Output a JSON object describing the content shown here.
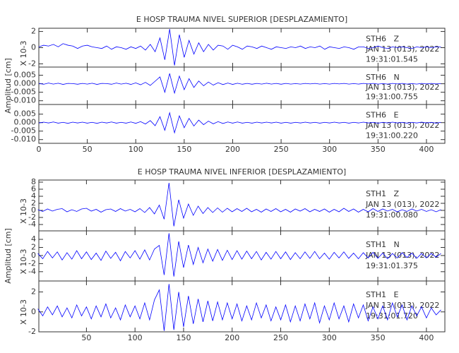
{
  "chart_data": [
    {
      "type": "line",
      "title": "E HOSP TRAUMA NIVEL SUPERIOR [DESPLAZAMIENTO]",
      "ylabel": "Amplitud [cm]",
      "color": "#0000ff",
      "xlim": [
        0,
        419
      ],
      "xticks": [
        0,
        50,
        100,
        150,
        200,
        250,
        300,
        350,
        400
      ],
      "x": [
        0,
        5,
        10,
        15,
        20,
        25,
        30,
        35,
        40,
        45,
        50,
        55,
        60,
        65,
        70,
        75,
        80,
        85,
        90,
        95,
        100,
        105,
        110,
        115,
        120,
        125,
        130,
        135,
        140,
        145,
        150,
        155,
        160,
        165,
        170,
        175,
        180,
        185,
        190,
        195,
        200,
        205,
        210,
        215,
        220,
        225,
        230,
        235,
        240,
        245,
        250,
        255,
        260,
        265,
        270,
        275,
        280,
        285,
        290,
        295,
        300,
        305,
        310,
        315,
        320,
        325,
        330,
        335,
        340,
        345,
        350,
        355,
        360,
        365,
        370,
        375,
        380,
        385,
        390,
        395,
        400,
        405,
        410,
        415
      ],
      "panels": [
        {
          "scale_label": "X 10-3",
          "ylim": [
            -2.4,
            2.4
          ],
          "yticks": [
            -2,
            0,
            2
          ],
          "labels": [
            "STH6   Z",
            "JAN 13 (013), 2022",
            "19:31:01.545"
          ],
          "values": [
            0.1,
            0.3,
            0.2,
            0.4,
            0.1,
            0.5,
            0.3,
            0.2,
            -0.1,
            0.2,
            0.3,
            0.1,
            0.0,
            -0.1,
            0.2,
            -0.2,
            0.1,
            0.0,
            -0.2,
            0.1,
            -0.1,
            0.2,
            -0.3,
            0.4,
            -0.5,
            1.2,
            -1.5,
            2.3,
            -2.2,
            1.6,
            -1.2,
            0.9,
            -0.8,
            0.6,
            -0.5,
            0.4,
            -0.3,
            0.3,
            0.2,
            -0.2,
            0.3,
            0.1,
            -0.2,
            0.2,
            0.1,
            -0.1,
            0.2,
            0.0,
            -0.2,
            0.1,
            0.0,
            -0.1,
            0.1,
            0.0,
            0.2,
            -0.1,
            0.1,
            0.0,
            0.2,
            -0.2,
            0.1,
            0.0,
            -0.1,
            0.1,
            0.0,
            -0.2,
            0.1,
            0.1,
            -0.1,
            0.0,
            0.2,
            0.0,
            -0.1,
            0.1,
            0.0,
            0.1,
            0.0,
            -0.1,
            0.1,
            0.0,
            0.1,
            0.0,
            0.1,
            0.1
          ]
        },
        {
          "ylim": [
            -0.0122,
            0.0098
          ],
          "yticks": [
            {
              "value": -0.01,
              "label": "-0.010"
            },
            -0.005,
            {
              "value": 0,
              "label": "0.000"
            },
            0.005
          ],
          "labels": [
            "STH6   N",
            "JAN 13 (013), 2022",
            "19:31:00.755"
          ],
          "values": [
            0.0002,
            -0.0003,
            0.0004,
            -0.0002,
            0.0003,
            -0.0004,
            0.0002,
            0.0001,
            -0.0003,
            0.0002,
            -0.0002,
            0.0003,
            -0.0004,
            0.0002,
            0.0001,
            -0.0003,
            0.0004,
            -0.0002,
            0.0003,
            -0.0004,
            0.0005,
            -0.0006,
            0.0008,
            -0.001,
            0.0015,
            0.004,
            -0.005,
            0.006,
            -0.0055,
            0.0045,
            -0.0035,
            0.003,
            -0.0022,
            0.0016,
            -0.0012,
            0.001,
            -0.0008,
            0.0006,
            -0.0005,
            0.0004,
            -0.0004,
            0.0003,
            -0.0003,
            0.0002,
            -0.0003,
            0.0002,
            -0.0002,
            0.0003,
            -0.0002,
            0.0002,
            -0.0003,
            0.0002,
            -0.0002,
            0.0001,
            -0.0002,
            0.0002,
            -0.0001,
            0.0002,
            -0.0002,
            0.0001,
            -0.0002,
            0.0002,
            -0.0001,
            0.0002,
            -0.0002,
            0.0001,
            -0.0002,
            0.0002,
            -0.0001,
            0.0002,
            -0.0002,
            0.0001,
            -0.0002,
            0.0002,
            -0.0001,
            0.0002,
            -0.0002,
            0.0001,
            -0.0002,
            0.0002,
            -0.0001,
            0.0002,
            -0.0001,
            0.0001
          ]
        },
        {
          "ylim": [
            -0.0122,
            0.0107
          ],
          "yticks": [
            {
              "value": -0.01,
              "label": "-0.010"
            },
            -0.005,
            {
              "value": 0,
              "label": "0.000"
            },
            0.005
          ],
          "labels": [
            "STH6   E",
            "JAN 13 (013), 2022",
            "19:31:00.220"
          ],
          "values": [
            -0.0002,
            0.0003,
            -0.0002,
            0.0004,
            -0.0003,
            0.0002,
            -0.0004,
            0.0003,
            -0.0002,
            0.0003,
            -0.0003,
            0.0002,
            -0.0004,
            0.0003,
            -0.0002,
            0.0004,
            -0.0003,
            0.0002,
            -0.0003,
            0.0004,
            -0.0004,
            0.0006,
            -0.0008,
            0.0012,
            -0.0018,
            0.0035,
            -0.0045,
            0.0058,
            -0.006,
            0.004,
            -0.003,
            0.0025,
            -0.002,
            0.0015,
            -0.0012,
            0.0009,
            -0.0007,
            0.0006,
            -0.0005,
            0.0004,
            -0.0003,
            0.0004,
            -0.0003,
            0.0002,
            -0.0003,
            0.0003,
            -0.0002,
            0.0003,
            -0.0002,
            0.0003,
            -0.0003,
            0.0002,
            -0.0003,
            0.0002,
            -0.0002,
            0.0003,
            -0.0002,
            0.0002,
            -0.0003,
            0.0002,
            -0.0002,
            0.0003,
            -0.0002,
            0.0002,
            -0.0003,
            0.0002,
            -0.0002,
            0.0003,
            -0.0002,
            0.0002,
            -0.0003,
            0.0002,
            -0.0002,
            0.0003,
            -0.0002,
            0.0002,
            -0.0003,
            0.0002,
            -0.0002,
            0.0003,
            -0.0002,
            0.0002,
            -0.0003,
            0.0002
          ]
        }
      ]
    },
    {
      "type": "line",
      "title": "E HOSP TRAUMA NIVEL INFERIOR [DESPLAZAMIENTO]",
      "ylabel": "Amplitud [cm]",
      "color": "#0000ff",
      "xlim": [
        1,
        419
      ],
      "xticks": [
        50,
        100,
        150,
        200,
        250,
        300,
        350,
        400
      ],
      "x": [
        0,
        5,
        10,
        15,
        20,
        25,
        30,
        35,
        40,
        45,
        50,
        55,
        60,
        65,
        70,
        75,
        80,
        85,
        90,
        95,
        100,
        105,
        110,
        115,
        120,
        125,
        130,
        135,
        140,
        145,
        150,
        155,
        160,
        165,
        170,
        175,
        180,
        185,
        190,
        195,
        200,
        205,
        210,
        215,
        220,
        225,
        230,
        235,
        240,
        245,
        250,
        255,
        260,
        265,
        270,
        275,
        280,
        285,
        290,
        295,
        300,
        305,
        310,
        315,
        320,
        325,
        330,
        335,
        340,
        345,
        350,
        355,
        360,
        365,
        370,
        375,
        380,
        385,
        390,
        395,
        400,
        405,
        410,
        415
      ],
      "panels": [
        {
          "scale_label": "X 10-3",
          "ylim": [
            -5.8,
            8.6
          ],
          "yticks": [
            -4,
            -2,
            0,
            2,
            4,
            6,
            8
          ],
          "labels": [
            "STH1   Z",
            "JAN 13 (013), 2022",
            "19:31:00.080"
          ],
          "values": [
            0.2,
            -0.3,
            0.4,
            -0.2,
            0.3,
            0.5,
            -0.4,
            0.2,
            -0.3,
            0.4,
            0.6,
            -0.2,
            0.3,
            -0.5,
            0.2,
            0.4,
            -0.3,
            0.5,
            -0.2,
            0.3,
            -0.4,
            0.5,
            -0.6,
            0.8,
            -1.0,
            1.5,
            -2.5,
            7.8,
            -4.5,
            3.0,
            -2.2,
            1.8,
            -1.4,
            1.2,
            -0.9,
            0.8,
            -0.6,
            0.7,
            -0.5,
            0.6,
            -0.4,
            0.5,
            -0.3,
            0.6,
            -0.4,
            0.3,
            -0.5,
            0.4,
            -0.3,
            0.5,
            -0.4,
            0.3,
            -0.5,
            0.4,
            -0.2,
            0.5,
            -0.4,
            0.3,
            -0.3,
            0.4,
            -0.5,
            0.3,
            -0.4,
            0.6,
            -0.3,
            0.4,
            -0.5,
            0.3,
            -0.4,
            0.5,
            -0.3,
            0.4,
            -0.2,
            0.3,
            -0.4,
            0.2,
            -0.3,
            0.4,
            -0.2,
            0.3,
            -0.3,
            0.2,
            -0.4,
            0.2
          ]
        },
        {
          "scale_label": "X 10-3",
          "ylim": [
            -6.3,
            6.1
          ],
          "yticks": [
            -4,
            -2,
            0,
            2,
            4
          ],
          "labels": [
            "STH1   N",
            "JAN 13 (013), 2022",
            "19:31:01.375"
          ],
          "values": [
            0.5,
            -0.8,
            1.0,
            -0.6,
            0.9,
            -1.1,
            0.7,
            -0.9,
            1.2,
            -0.8,
            0.9,
            -1.0,
            0.6,
            -1.2,
            1.1,
            -0.7,
            0.8,
            -1.3,
            1.0,
            -0.6,
            1.2,
            -0.9,
            1.4,
            -1.1,
            1.6,
            2.5,
            -4.8,
            5.5,
            -5.2,
            3.5,
            -3.0,
            2.6,
            -2.2,
            2.0,
            -1.8,
            1.6,
            -1.4,
            1.5,
            -1.2,
            1.3,
            -1.0,
            1.2,
            -0.9,
            1.1,
            -0.8,
            1.0,
            -1.1,
            0.8,
            -0.9,
            1.0,
            -0.8,
            0.9,
            -1.0,
            0.7,
            -0.8,
            0.9,
            -0.7,
            1.0,
            -0.8,
            0.6,
            -0.9,
            0.8,
            -0.6,
            0.9,
            -0.7,
            0.6,
            -0.8,
            0.7,
            -0.6,
            0.8,
            -0.7,
            0.6,
            -0.8,
            0.5,
            -0.6,
            0.7,
            -0.5,
            0.6,
            -0.7,
            0.5,
            -0.6,
            0.5,
            -0.4,
            0.5
          ]
        },
        {
          "scale_label": "X 10-3",
          "ylim": [
            -2.0,
            3.1
          ],
          "yticks": [
            -2,
            0,
            2
          ],
          "labels": [
            "STH1   E",
            "JAN 13 (013), 2022",
            "19:31:01.720"
          ],
          "values": [
            0.3,
            -0.4,
            0.5,
            -0.3,
            0.6,
            -0.5,
            0.4,
            -0.6,
            0.7,
            -0.4,
            0.5,
            -0.7,
            0.6,
            -0.5,
            0.8,
            -0.6,
            0.4,
            -0.8,
            0.7,
            -0.5,
            0.6,
            -0.7,
            0.9,
            -0.8,
            1.2,
            2.2,
            -1.9,
            2.8,
            -1.8,
            2.0,
            -1.5,
            1.6,
            -1.2,
            1.3,
            -1.0,
            1.1,
            -0.9,
            1.0,
            -0.8,
            0.9,
            -0.7,
            0.8,
            -0.9,
            0.6,
            -0.8,
            0.9,
            -0.6,
            0.7,
            -0.9,
            0.5,
            -0.8,
            0.7,
            -1.0,
            0.6,
            -0.9,
            0.8,
            -0.7,
            0.9,
            -1.1,
            0.6,
            -0.8,
            0.9,
            -0.7,
            0.6,
            -1.0,
            0.8,
            -0.6,
            0.7,
            -0.9,
            0.5,
            -0.7,
            0.6,
            -0.8,
            0.9,
            -0.5,
            0.7,
            -0.8,
            0.6,
            -0.4,
            0.5,
            -0.6,
            0.4,
            -0.3,
            0.2
          ]
        }
      ]
    }
  ]
}
